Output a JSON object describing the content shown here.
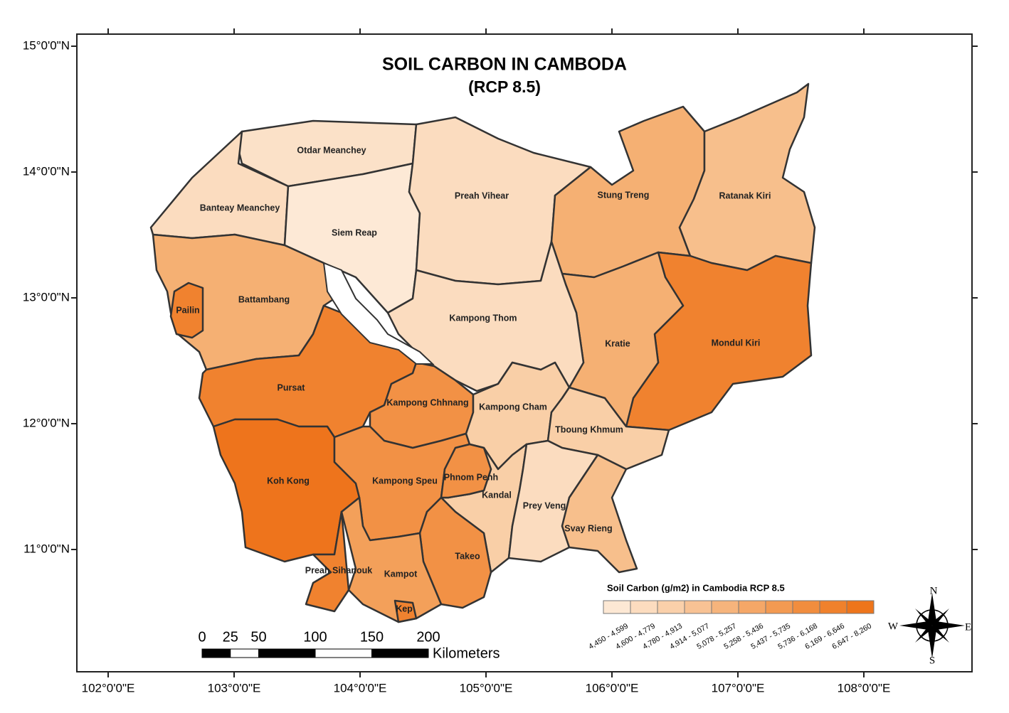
{
  "title": "SOIL CARBON IN CAMBODA",
  "subtitle": "(RCP 8.5)",
  "provinces": [
    {
      "name": "Otdar Meanchey",
      "fill": "#fbe1c8"
    },
    {
      "name": "Banteay Meanchey",
      "fill": "#fbdcbf"
    },
    {
      "name": "Siem Reap",
      "fill": "#fde9d6"
    },
    {
      "name": "Preah Vihear",
      "fill": "#fbdcbf"
    },
    {
      "name": "Stung Treng",
      "fill": "#f5b073"
    },
    {
      "name": "Ratanak Kiri",
      "fill": "#f7bf8c"
    },
    {
      "name": "Mondul Kiri",
      "fill": "#f0822f"
    },
    {
      "name": "Kratie",
      "fill": "#f5b073"
    },
    {
      "name": "Kampong Thom",
      "fill": "#fbdcbf"
    },
    {
      "name": "Battambang",
      "fill": "#f5b073"
    },
    {
      "name": "Pailin",
      "fill": "#f0822f"
    },
    {
      "name": "Pursat",
      "fill": "#f0822f"
    },
    {
      "name": "Koh Kong",
      "fill": "#ee741c"
    },
    {
      "name": "Kampong Chhnang",
      "fill": "#f29145"
    },
    {
      "name": "Kampong Speu",
      "fill": "#f29145"
    },
    {
      "name": "Kampong Cham",
      "fill": "#f9cfa7"
    },
    {
      "name": "Tboung Khmum",
      "fill": "#f9cfa7"
    },
    {
      "name": "Kandal",
      "fill": "#f9cfa7"
    },
    {
      "name": "Phnom Penh",
      "fill": "#f29145"
    },
    {
      "name": "Prey Veng",
      "fill": "#fbdcbf"
    },
    {
      "name": "Svay Rieng",
      "fill": "#f7bf8c"
    },
    {
      "name": "Takeo",
      "fill": "#f29145"
    },
    {
      "name": "Kampot",
      "fill": "#f3a05a"
    },
    {
      "name": "Kep",
      "fill": "#f0822f"
    },
    {
      "name": "Preah Sihanouk",
      "fill": "#f0822f"
    }
  ],
  "legend": {
    "title": "Soil Carbon (g/m2) in Cambodia RCP 8.5",
    "classes": [
      {
        "label": "4,450 - 4,599",
        "color": "#fde8d4"
      },
      {
        "label": "4,600 - 4,779",
        "color": "#fcdcbf"
      },
      {
        "label": "4,780 - 4,913",
        "color": "#fad0aa"
      },
      {
        "label": "4,914 - 5,077",
        "color": "#f8c294"
      },
      {
        "label": "5,078 - 5,257",
        "color": "#f6b47c"
      },
      {
        "label": "5,258 - 5,436",
        "color": "#f5a767"
      },
      {
        "label": "5,437 - 5,735",
        "color": "#f39a52"
      },
      {
        "label": "5,736 - 6,168",
        "color": "#f18d3e"
      },
      {
        "label": "6,169 - 6,646",
        "color": "#f0812c"
      },
      {
        "label": "6,647 - 8,260",
        "color": "#ee751b"
      }
    ]
  },
  "graticule": {
    "longitude": [
      "102°0'0\"E",
      "103°0'0\"E",
      "104°0'0\"E",
      "105°0'0\"E",
      "106°0'0\"E",
      "107°0'0\"E",
      "108°0'0\"E"
    ],
    "latitude": [
      "15°0'0\"N",
      "14°0'0\"N",
      "13°0'0\"N",
      "12°0'0\"N",
      "11°0'0\"N"
    ]
  },
  "scale_bar": {
    "ticks": [
      0,
      25,
      50,
      100,
      150,
      200
    ],
    "unit": "Kilometers"
  },
  "compass": {
    "n": "N",
    "e": "E",
    "s": "S",
    "w": "W"
  }
}
